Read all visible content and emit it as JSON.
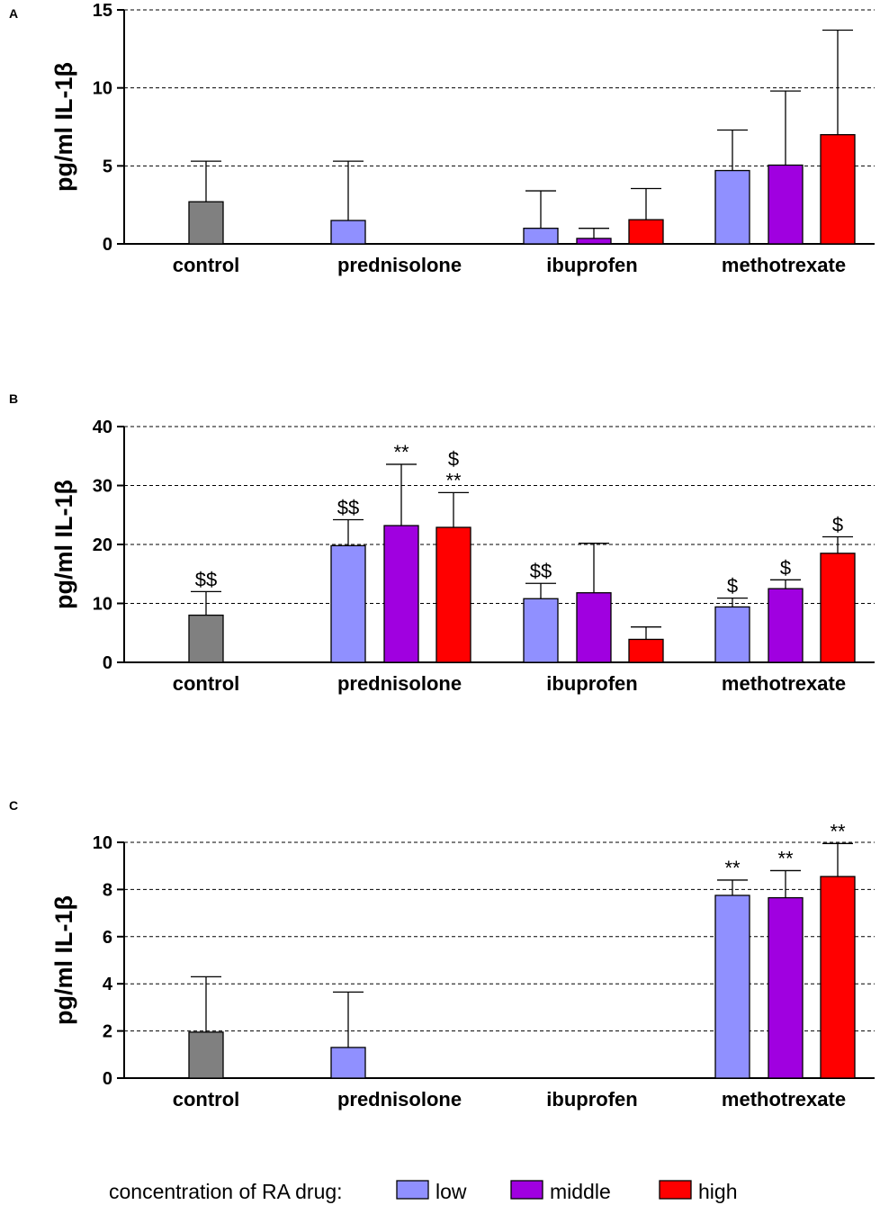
{
  "colors": {
    "control": "#808080",
    "low": "#9090ff",
    "middle": "#a000e0",
    "high": "#ff0000",
    "axis": "#000000",
    "grid": "#000000"
  },
  "legend": {
    "title": "concentration of RA drug:",
    "items": [
      {
        "key": "low",
        "label": "low"
      },
      {
        "key": "middle",
        "label": "middle"
      },
      {
        "key": "high",
        "label": "high"
      }
    ]
  },
  "chart_data": [
    {
      "type": "bar",
      "panel": "A",
      "ylabel": "pg/ml IL-1β",
      "ylim": [
        0,
        15
      ],
      "yticks": [
        0,
        5,
        10,
        15
      ],
      "grid": "dashed horizontal at each y tick",
      "categories": [
        "control",
        "prednisolone",
        "ibuprofen",
        "methotrexate"
      ],
      "bars": [
        {
          "category": "control",
          "series": "control",
          "value": 2.7,
          "error": 2.6,
          "annot": []
        },
        {
          "category": "prednisolone",
          "series": "low",
          "value": 1.5,
          "error": 3.8,
          "annot": []
        },
        {
          "category": "ibuprofen",
          "series": "low",
          "value": 1.0,
          "error": 2.4,
          "annot": []
        },
        {
          "category": "ibuprofen",
          "series": "middle",
          "value": 0.35,
          "error": 0.65,
          "annot": []
        },
        {
          "category": "ibuprofen",
          "series": "high",
          "value": 1.55,
          "error": 2.0,
          "annot": []
        },
        {
          "category": "methotrexate",
          "series": "low",
          "value": 4.7,
          "error": 2.6,
          "annot": []
        },
        {
          "category": "methotrexate",
          "series": "middle",
          "value": 5.05,
          "error": 4.75,
          "annot": []
        },
        {
          "category": "methotrexate",
          "series": "high",
          "value": 7.0,
          "error": 6.7,
          "annot": []
        }
      ]
    },
    {
      "type": "bar",
      "panel": "B",
      "ylabel": "pg/ml IL-1β",
      "ylim": [
        0,
        40
      ],
      "yticks": [
        0,
        10,
        20,
        30,
        40
      ],
      "grid": "dashed horizontal at each y tick",
      "categories": [
        "control",
        "prednisolone",
        "ibuprofen",
        "methotrexate"
      ],
      "bars": [
        {
          "category": "control",
          "series": "control",
          "value": 8.0,
          "error": 4.0,
          "annot": [
            "$$"
          ]
        },
        {
          "category": "prednisolone",
          "series": "low",
          "value": 19.8,
          "error": 4.4,
          "annot": [
            "$$"
          ]
        },
        {
          "category": "prednisolone",
          "series": "middle",
          "value": 23.2,
          "error": 10.4,
          "annot": [
            "**"
          ]
        },
        {
          "category": "prednisolone",
          "series": "high",
          "value": 22.9,
          "error": 5.9,
          "annot": [
            "$",
            "**"
          ]
        },
        {
          "category": "ibuprofen",
          "series": "low",
          "value": 10.8,
          "error": 2.6,
          "annot": [
            "$$"
          ]
        },
        {
          "category": "ibuprofen",
          "series": "middle",
          "value": 11.8,
          "error": 8.4,
          "annot": []
        },
        {
          "category": "ibuprofen",
          "series": "high",
          "value": 3.9,
          "error": 2.1,
          "annot": []
        },
        {
          "category": "methotrexate",
          "series": "low",
          "value": 9.4,
          "error": 1.5,
          "annot": [
            "$"
          ]
        },
        {
          "category": "methotrexate",
          "series": "middle",
          "value": 12.5,
          "error": 1.5,
          "annot": [
            "$"
          ]
        },
        {
          "category": "methotrexate",
          "series": "high",
          "value": 18.5,
          "error": 2.8,
          "annot": [
            "$"
          ]
        }
      ]
    },
    {
      "type": "bar",
      "panel": "C",
      "ylabel": "pg/ml IL-1β",
      "ylim": [
        0,
        10
      ],
      "yticks": [
        0,
        2,
        4,
        6,
        8,
        10
      ],
      "grid": "dashed horizontal at each y tick",
      "categories": [
        "control",
        "prednisolone",
        "ibuprofen",
        "methotrexate"
      ],
      "bars": [
        {
          "category": "control",
          "series": "control",
          "value": 1.95,
          "error": 2.35,
          "annot": []
        },
        {
          "category": "prednisolone",
          "series": "low",
          "value": 1.3,
          "error": 2.35,
          "annot": []
        },
        {
          "category": "methotrexate",
          "series": "low",
          "value": 7.75,
          "error": 0.65,
          "annot": [
            "**"
          ]
        },
        {
          "category": "methotrexate",
          "series": "middle",
          "value": 7.65,
          "error": 1.15,
          "annot": [
            "**"
          ]
        },
        {
          "category": "methotrexate",
          "series": "high",
          "value": 8.55,
          "error": 1.4,
          "annot": [
            "**"
          ]
        }
      ]
    }
  ]
}
